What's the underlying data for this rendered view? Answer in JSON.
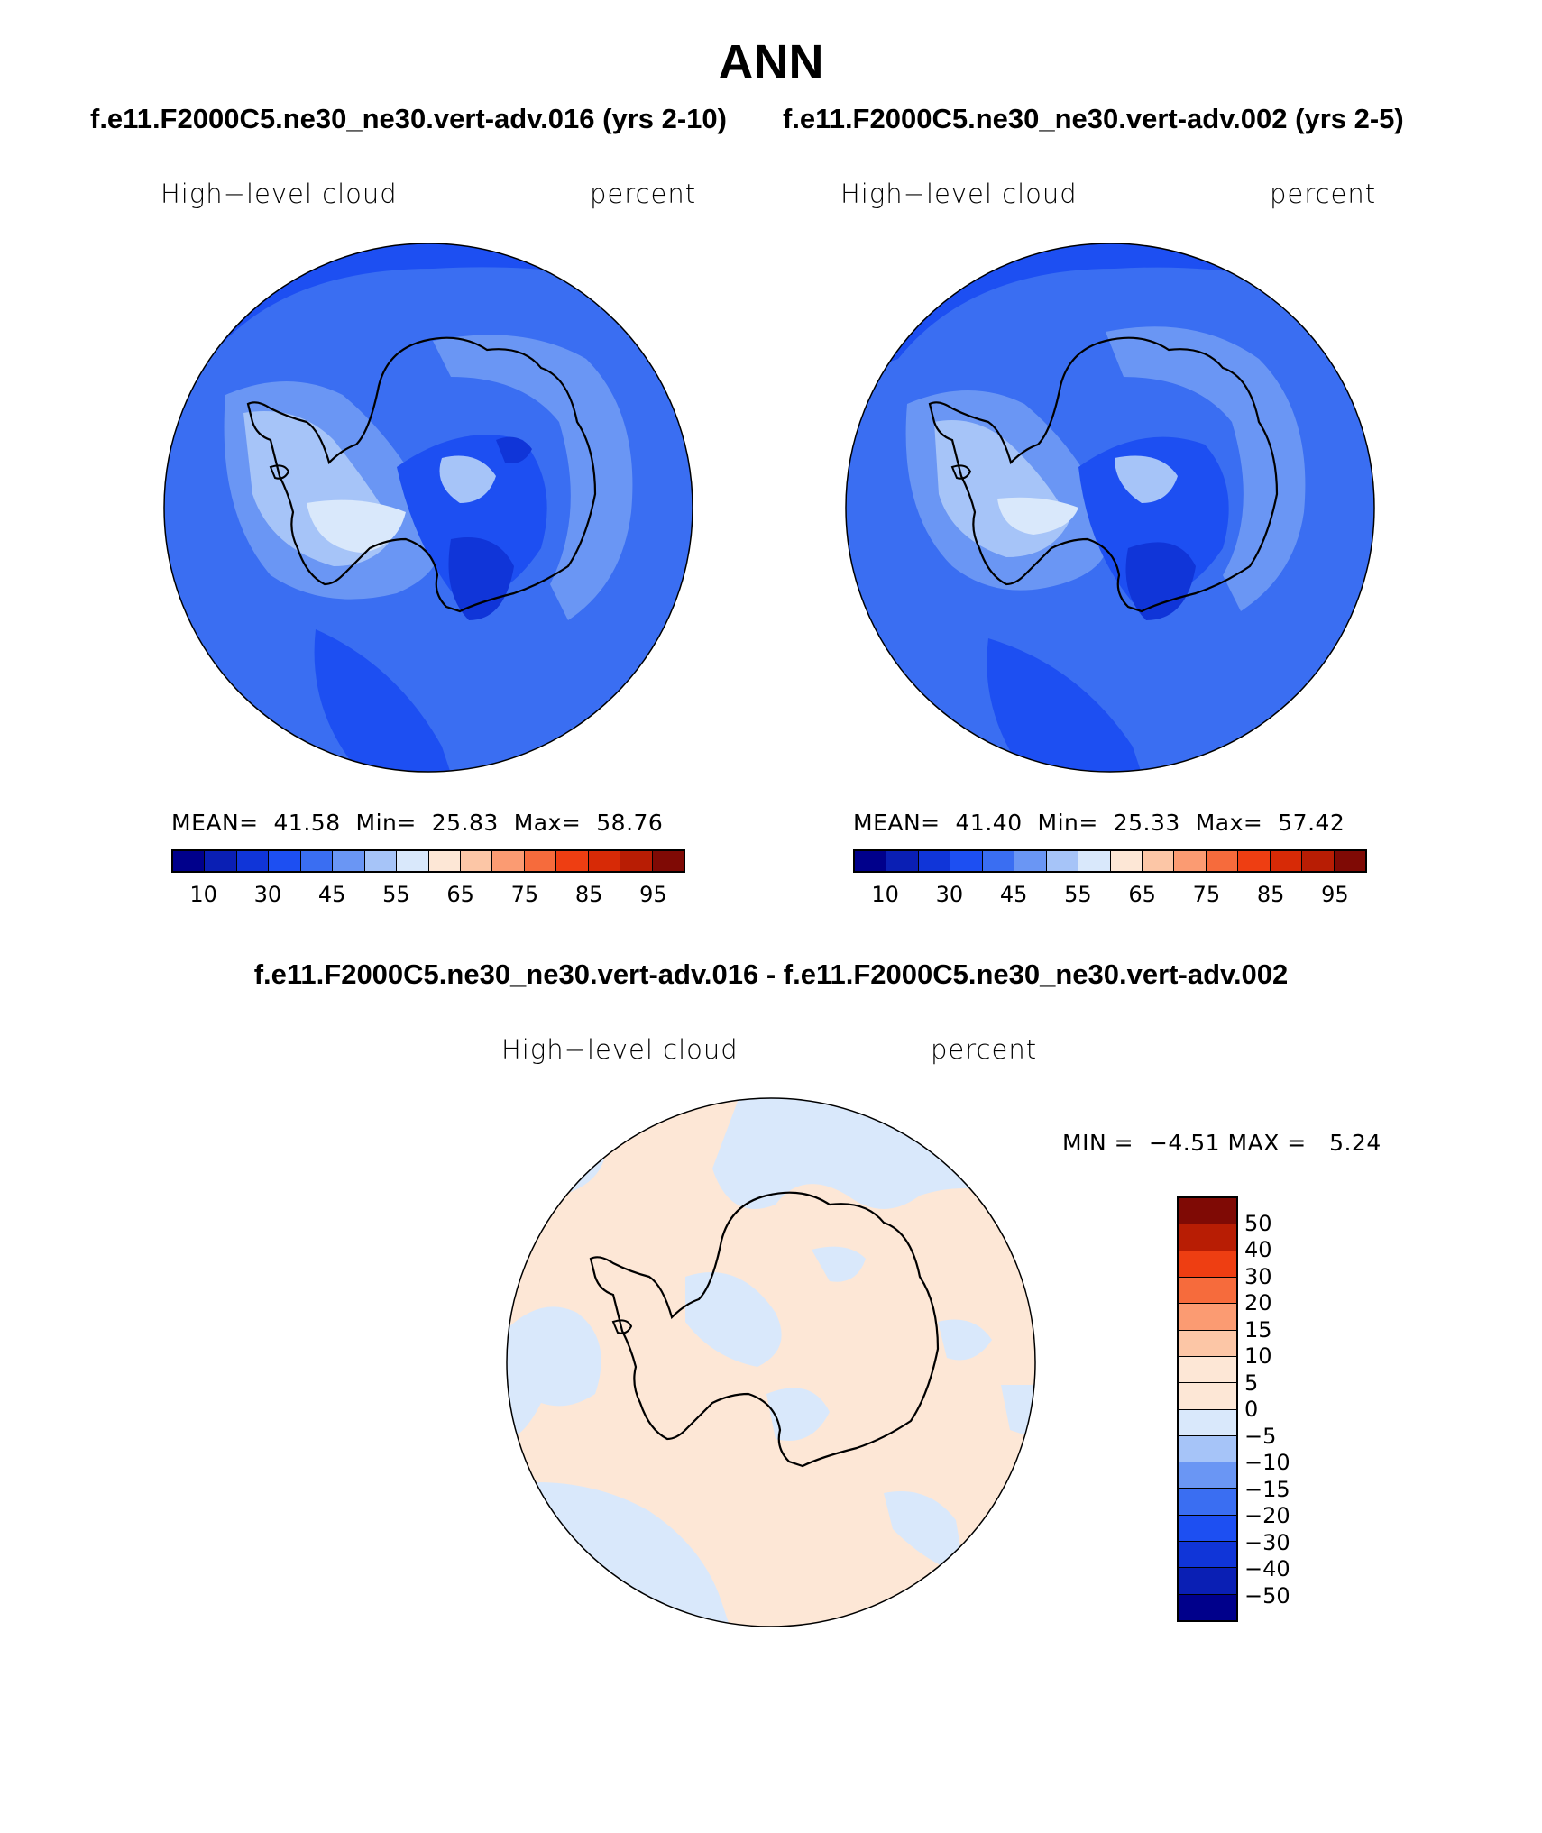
{
  "title": "ANN",
  "case_titles": [
    "f.e11.F2000C5.ne30_ne30.vert-adv.016 (yrs 2-10)",
    "f.e11.F2000C5.ne30_ne30.vert-adv.002 (yrs 2-5)"
  ],
  "diff_title": "f.e11.F2000C5.ne30_ne30.vert-adv.016 - f.e11.F2000C5.ne30_ne30.vert-adv.002",
  "panels": [
    {
      "variable": "High−level cloud",
      "units": "percent",
      "stats": {
        "mean_label": "MEAN=",
        "mean": "41.58",
        "min_label": "Min=",
        "min": "25.83",
        "max_label": "Max=",
        "max": "58.76"
      }
    },
    {
      "variable": "High−level cloud",
      "units": "percent",
      "stats": {
        "mean_label": "MEAN=",
        "mean": "41.40",
        "min_label": "Min=",
        "min": "25.33",
        "max_label": "Max=",
        "max": "57.42"
      }
    }
  ],
  "diff_panel": {
    "variable": "High−level cloud",
    "units": "percent",
    "min_label": "MIN =",
    "min": "−4.51",
    "max_label": "MAX =",
    "max": "5.24"
  },
  "colorbar_abs": {
    "ticks": [
      "10",
      "30",
      "45",
      "55",
      "65",
      "75",
      "85",
      "95"
    ],
    "colors": [
      "#00008b",
      "#0a1fb4",
      "#1035d8",
      "#1d4ff2",
      "#3a6ef2",
      "#6a96f4",
      "#a6c4f8",
      "#d9e8fb",
      "#fde7d6",
      "#fcc6a6",
      "#fb9b72",
      "#f66b3c",
      "#ee3e12",
      "#d72a06",
      "#b81d04",
      "#7f0a05"
    ]
  },
  "colorbar_diff": {
    "labels": [
      "50",
      "40",
      "30",
      "20",
      "15",
      "10",
      "5",
      "0",
      "−5",
      "−10",
      "−15",
      "−20",
      "−30",
      "−40",
      "−50"
    ],
    "colors": [
      "#7f0a05",
      "#b81d04",
      "#ee3e12",
      "#f66b3c",
      "#fb9b72",
      "#fcc6a6",
      "#fde7d6",
      "#fde7d6",
      "#d9e8fb",
      "#a6c4f8",
      "#6a96f4",
      "#3a6ef2",
      "#1d4ff2",
      "#1035d8",
      "#0a1fb4",
      "#00008b"
    ]
  },
  "map_colors": {
    "ocean_base": "#3a6ef2",
    "mid_high": "#6a96f4",
    "high": "#a6c4f8",
    "highest": "#d9e8fb",
    "low": "#1d4ff2",
    "lowest": "#1035d8",
    "diff_pos": "#fde7d6",
    "diff_neg": "#d9e8fb"
  }
}
